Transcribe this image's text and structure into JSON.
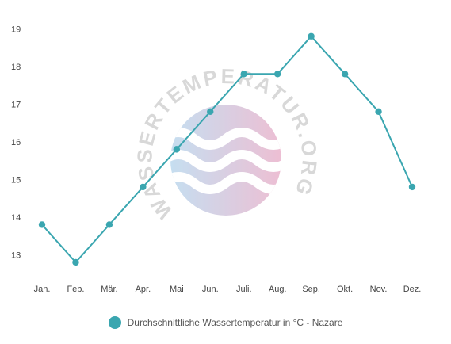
{
  "chart_data": {
    "type": "line",
    "categories": [
      "Jan.",
      "Feb.",
      "Mär.",
      "Apr.",
      "Mai",
      "Jun.",
      "Juli.",
      "Aug.",
      "Sep.",
      "Okt.",
      "Nov.",
      "Dez."
    ],
    "series": [
      {
        "name": "Durchschnittliche Wassertemperatur in °C - Nazare",
        "values": [
          13.8,
          12.8,
          13.8,
          14.8,
          15.8,
          16.8,
          17.8,
          17.8,
          18.8,
          17.8,
          16.8,
          14.8
        ],
        "color": "#3aa6b0"
      }
    ],
    "yticks": [
      13,
      14,
      15,
      16,
      17,
      18,
      19
    ],
    "ylim": [
      12.4,
      19.3
    ],
    "xlabel": "",
    "ylabel": "",
    "grid": false,
    "legend_position": "bottom"
  },
  "watermark": {
    "text": "WASSERTEMPERATUR.ORG",
    "colors": [
      "#bcd9ee",
      "#eab4cc"
    ]
  }
}
